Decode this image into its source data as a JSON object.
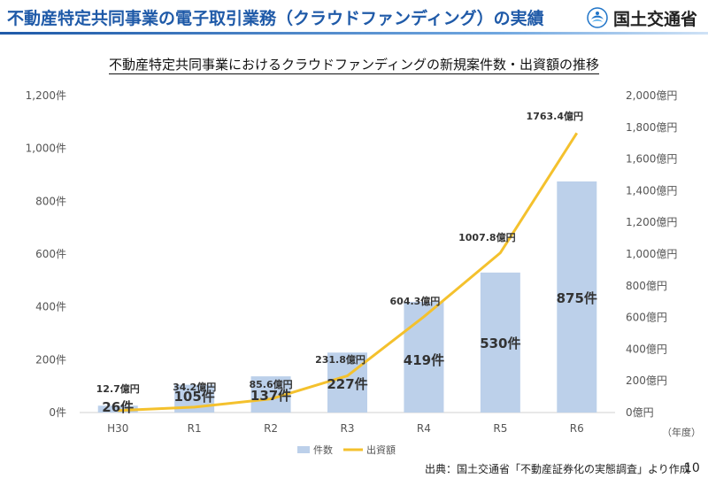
{
  "header": {
    "title": "不動産特定共同事業の電子取引業務（クラウドファンディング）の実績",
    "logo_text": "国土交通省"
  },
  "footer": {
    "source": "出典：国土交通省「不動産証券化の実態調査」より作成",
    "page_number": "10"
  },
  "chart_data": {
    "type": "bar",
    "title": "不動産特定共同事業におけるクラウドファンディングの新規案件数・出資額の推移",
    "categories": [
      "H30",
      "R1",
      "R2",
      "R3",
      "R4",
      "R5",
      "R6"
    ],
    "x_unit": "（年度）",
    "y_left": {
      "ylim": [
        0,
        1200
      ],
      "ticks": [
        0,
        200,
        400,
        600,
        800,
        1000,
        1200
      ],
      "tick_labels": [
        "0件",
        "200件",
        "400件",
        "600件",
        "800件",
        "1,000件",
        "1,200件"
      ]
    },
    "y_right": {
      "ylim": [
        0,
        2000
      ],
      "ticks": [
        0,
        200,
        400,
        600,
        800,
        1000,
        1200,
        1400,
        1600,
        1800,
        2000
      ],
      "tick_labels": [
        "0億円",
        "200億円",
        "400億円",
        "600億円",
        "800億円",
        "1,000億円",
        "1,200億円",
        "1,400億円",
        "1,600億円",
        "1,800億円",
        "2,000億円"
      ]
    },
    "series": [
      {
        "name": "件数",
        "type": "bar",
        "axis": "left",
        "color": "#bcd0ea",
        "values": [
          26,
          105,
          137,
          227,
          419,
          530,
          875
        ],
        "labels": [
          "26件",
          "105件",
          "137件",
          "227件",
          "419件",
          "530件",
          "875件"
        ]
      },
      {
        "name": "出資額",
        "type": "line",
        "axis": "right",
        "color": "#f4c12d",
        "values": [
          12.7,
          34.2,
          85.6,
          231.8,
          604.3,
          1007.8,
          1763.4
        ],
        "labels": [
          "12.7億円",
          "34.2億円",
          "85.6億円",
          "231.8億円",
          "604.3億円",
          "1007.8億円",
          "1763.4億円"
        ]
      }
    ],
    "grid": false,
    "legend": "bottom"
  }
}
